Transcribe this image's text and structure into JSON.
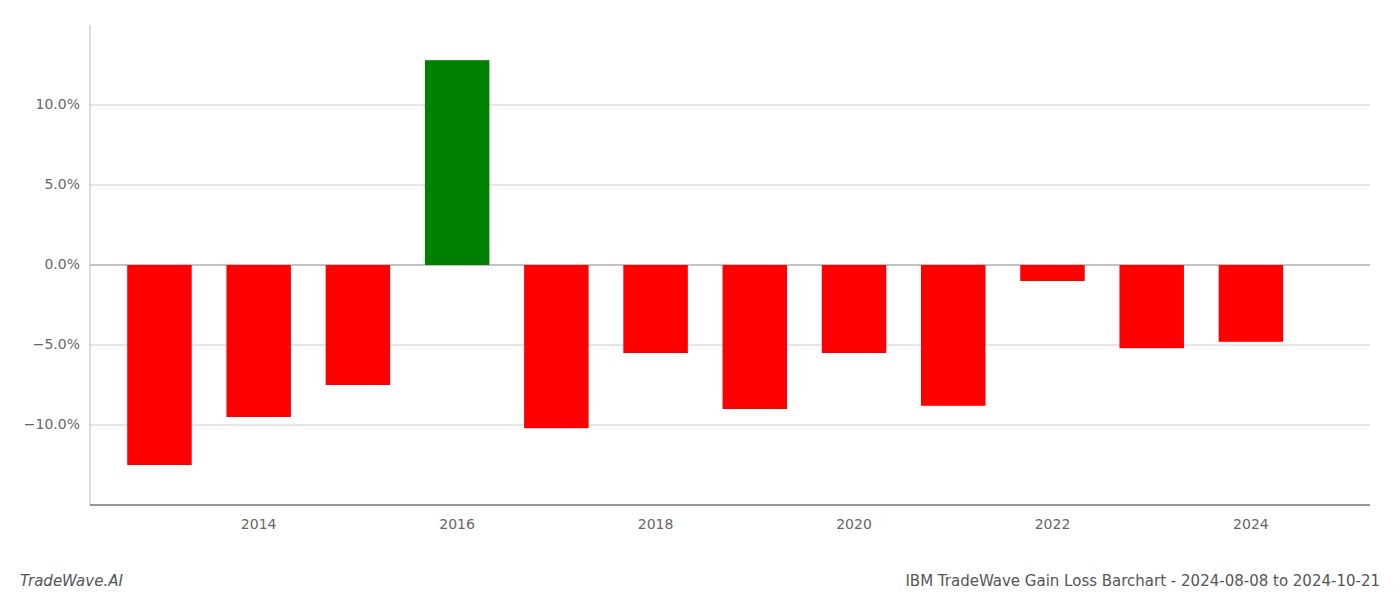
{
  "chart_data": {
    "type": "bar",
    "title": "IBM TradeWave Gain Loss Barchart - 2024-08-08 to 2024-10-21",
    "annotations": [
      "TradeWave.AI"
    ],
    "x": [
      2013,
      2014,
      2015,
      2016,
      2017,
      2018,
      2019,
      2020,
      2021,
      2022,
      2023,
      2024
    ],
    "values": [
      -12.5,
      -9.5,
      -7.5,
      12.8,
      -10.2,
      -5.5,
      -9.0,
      -5.5,
      -8.8,
      -1.0,
      -5.2,
      -4.8
    ],
    "colors": [
      "#ff0000",
      "#ff0000",
      "#ff0000",
      "#008000",
      "#ff0000",
      "#ff0000",
      "#ff0000",
      "#ff0000",
      "#ff0000",
      "#ff0000",
      "#ff0000",
      "#ff0000"
    ],
    "xlim": [
      2012.3,
      2025.2
    ],
    "xticks": [
      2014,
      2016,
      2018,
      2020,
      2022,
      2024
    ],
    "ylim": [
      -15,
      15
    ],
    "yticks": [
      {
        "value": -10.0,
        "label": "−10.0%"
      },
      {
        "value": -5.0,
        "label": "−5.0%"
      },
      {
        "value": 0.0,
        "label": "0.0%"
      },
      {
        "value": 5.0,
        "label": "5.0%"
      },
      {
        "value": 10.0,
        "label": "10.0%"
      }
    ],
    "grid": true
  }
}
